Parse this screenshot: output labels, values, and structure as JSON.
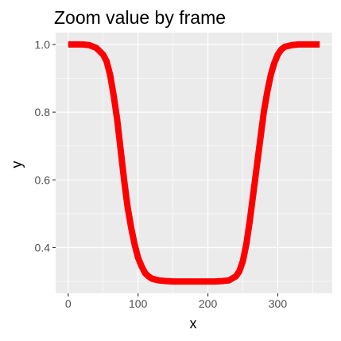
{
  "chart_data": {
    "type": "line",
    "title": "Zoom value by frame",
    "xlabel": "x",
    "ylabel": "y",
    "xlim": [
      -18,
      378
    ],
    "ylim": [
      0.265,
      1.035
    ],
    "x_ticks": [
      0,
      100,
      200,
      300
    ],
    "y_ticks": [
      0.4,
      0.6,
      0.8,
      1.0
    ],
    "x_tick_labels": [
      "0",
      "100",
      "200",
      "300"
    ],
    "y_tick_labels": [
      "0.4",
      "0.6",
      "0.8",
      "1.0"
    ],
    "grid": true,
    "legend": "none",
    "series": [
      {
        "color": "#ff0000",
        "x": [
          0,
          10,
          20,
          30,
          40,
          50,
          55,
          60,
          65,
          70,
          75,
          80,
          85,
          90,
          95,
          100,
          105,
          110,
          115,
          120,
          130,
          140,
          150,
          160,
          170,
          180,
          190,
          200,
          210,
          220,
          230,
          240,
          245,
          250,
          255,
          260,
          265,
          270,
          275,
          280,
          285,
          290,
          295,
          300,
          305,
          310,
          320,
          330,
          340,
          350,
          360
        ],
        "values": [
          1.0,
          1.0,
          1.0,
          0.998,
          0.99,
          0.97,
          0.95,
          0.91,
          0.85,
          0.78,
          0.69,
          0.6,
          0.52,
          0.46,
          0.41,
          0.37,
          0.345,
          0.325,
          0.315,
          0.308,
          0.303,
          0.301,
          0.3,
          0.3,
          0.3,
          0.3,
          0.3,
          0.3,
          0.3,
          0.301,
          0.303,
          0.315,
          0.33,
          0.36,
          0.41,
          0.48,
          0.56,
          0.64,
          0.72,
          0.8,
          0.86,
          0.91,
          0.945,
          0.97,
          0.985,
          0.993,
          0.998,
          1.0,
          1.0,
          1.0,
          1.0
        ]
      }
    ]
  }
}
